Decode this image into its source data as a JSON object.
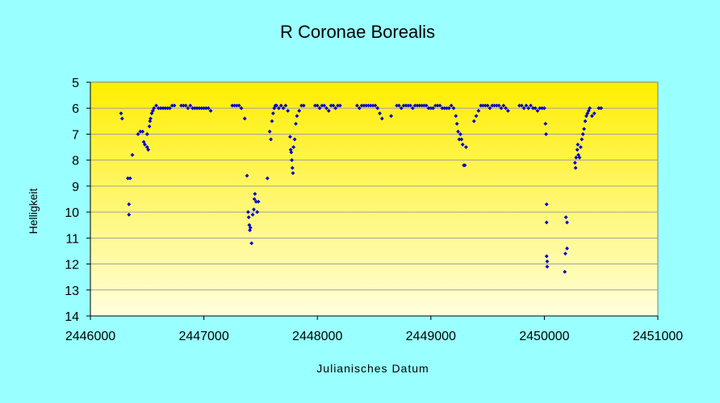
{
  "chart_data": {
    "type": "scatter",
    "title": "R Coronae Borealis",
    "xlabel": "Julianisches Datum",
    "ylabel": "Helligkeit",
    "xlim": [
      2446000,
      2451000
    ],
    "ylim": [
      5,
      14
    ],
    "y_inverted": true,
    "x_ticks": [
      "2446000",
      "2447000",
      "2448000",
      "2449000",
      "2450000",
      "2451000"
    ],
    "y_ticks": [
      "5",
      "6",
      "7",
      "8",
      "9",
      "10",
      "11",
      "12",
      "13",
      "14"
    ],
    "grid": true,
    "legend": "none",
    "colors": {
      "background": "#99ffff",
      "plot_top": "#ffee00",
      "plot_bottom": "#ffffdd",
      "marker": "#0000cc",
      "grid": "#a0a0a0"
    },
    "series": [
      {
        "marker": "diamond",
        "points": [
          [
            2446270,
            6.2
          ],
          [
            2446280,
            6.4
          ],
          [
            2446330,
            8.7
          ],
          [
            2446340,
            9.7
          ],
          [
            2446340,
            10.1
          ],
          [
            2446350,
            8.7
          ],
          [
            2446370,
            7.8
          ],
          [
            2446420,
            7.0
          ],
          [
            2446440,
            6.9
          ],
          [
            2446460,
            6.9
          ],
          [
            2446470,
            7.3
          ],
          [
            2446480,
            7.4
          ],
          [
            2446500,
            7.5
          ],
          [
            2446510,
            7.6
          ],
          [
            2446500,
            7.0
          ],
          [
            2446520,
            6.7
          ],
          [
            2446525,
            6.5
          ],
          [
            2446530,
            6.4
          ],
          [
            2446540,
            6.2
          ],
          [
            2446550,
            6.1
          ],
          [
            2446560,
            6.0
          ],
          [
            2446580,
            5.9
          ],
          [
            2446600,
            6.0
          ],
          [
            2446620,
            6.0
          ],
          [
            2446640,
            6.0
          ],
          [
            2446660,
            6.0
          ],
          [
            2446680,
            6.0
          ],
          [
            2446700,
            6.0
          ],
          [
            2446720,
            5.9
          ],
          [
            2446740,
            5.9
          ],
          [
            2446800,
            5.9
          ],
          [
            2446820,
            5.9
          ],
          [
            2446840,
            5.9
          ],
          [
            2446860,
            6.0
          ],
          [
            2446880,
            5.9
          ],
          [
            2446900,
            6.0
          ],
          [
            2446920,
            6.0
          ],
          [
            2446940,
            6.0
          ],
          [
            2446960,
            6.0
          ],
          [
            2446980,
            6.0
          ],
          [
            2447000,
            6.0
          ],
          [
            2447020,
            6.0
          ],
          [
            2447040,
            6.0
          ],
          [
            2447060,
            6.1
          ],
          [
            2447250,
            5.9
          ],
          [
            2447270,
            5.9
          ],
          [
            2447290,
            5.9
          ],
          [
            2447310,
            5.9
          ],
          [
            2447330,
            6.0
          ],
          [
            2447360,
            6.4
          ],
          [
            2447380,
            8.6
          ],
          [
            2447390,
            10.0
          ],
          [
            2447395,
            10.2
          ],
          [
            2447400,
            10.5
          ],
          [
            2447405,
            10.7
          ],
          [
            2447410,
            10.6
          ],
          [
            2447420,
            11.2
          ],
          [
            2447430,
            10.1
          ],
          [
            2447440,
            9.9
          ],
          [
            2447445,
            9.5
          ],
          [
            2447450,
            9.3
          ],
          [
            2447460,
            9.6
          ],
          [
            2447470,
            10.0
          ],
          [
            2447480,
            9.6
          ],
          [
            2447560,
            8.7
          ],
          [
            2447580,
            6.9
          ],
          [
            2447590,
            7.2
          ],
          [
            2447600,
            6.5
          ],
          [
            2447610,
            6.2
          ],
          [
            2447620,
            6.0
          ],
          [
            2447630,
            5.9
          ],
          [
            2447640,
            5.9
          ],
          [
            2447660,
            6.0
          ],
          [
            2447680,
            5.9
          ],
          [
            2447700,
            6.0
          ],
          [
            2447720,
            5.9
          ],
          [
            2447740,
            6.1
          ],
          [
            2447760,
            7.1
          ],
          [
            2447765,
            7.6
          ],
          [
            2447770,
            7.7
          ],
          [
            2447775,
            8.0
          ],
          [
            2447780,
            8.3
          ],
          [
            2447785,
            8.5
          ],
          [
            2447790,
            7.5
          ],
          [
            2447800,
            7.2
          ],
          [
            2447810,
            6.6
          ],
          [
            2447820,
            6.3
          ],
          [
            2447840,
            6.1
          ],
          [
            2447860,
            5.9
          ],
          [
            2447880,
            5.9
          ],
          [
            2447980,
            5.9
          ],
          [
            2448000,
            5.9
          ],
          [
            2448020,
            6.0
          ],
          [
            2448040,
            5.9
          ],
          [
            2448060,
            5.9
          ],
          [
            2448080,
            6.0
          ],
          [
            2448100,
            6.1
          ],
          [
            2448120,
            5.9
          ],
          [
            2448140,
            5.9
          ],
          [
            2448160,
            6.0
          ],
          [
            2448180,
            5.9
          ],
          [
            2448200,
            5.9
          ],
          [
            2448350,
            5.9
          ],
          [
            2448370,
            6.0
          ],
          [
            2448390,
            5.9
          ],
          [
            2448410,
            5.9
          ],
          [
            2448430,
            5.9
          ],
          [
            2448450,
            5.9
          ],
          [
            2448470,
            5.9
          ],
          [
            2448490,
            5.9
          ],
          [
            2448510,
            5.9
          ],
          [
            2448530,
            6.0
          ],
          [
            2448550,
            6.2
          ],
          [
            2448570,
            6.4
          ],
          [
            2448650,
            6.3
          ],
          [
            2448700,
            5.9
          ],
          [
            2448720,
            5.9
          ],
          [
            2448740,
            6.0
          ],
          [
            2448760,
            5.9
          ],
          [
            2448780,
            5.9
          ],
          [
            2448800,
            5.9
          ],
          [
            2448820,
            5.9
          ],
          [
            2448840,
            6.0
          ],
          [
            2448860,
            5.9
          ],
          [
            2448880,
            5.9
          ],
          [
            2448900,
            5.9
          ],
          [
            2448920,
            5.9
          ],
          [
            2448940,
            5.9
          ],
          [
            2448960,
            5.9
          ],
          [
            2448980,
            6.0
          ],
          [
            2449000,
            6.0
          ],
          [
            2449020,
            6.0
          ],
          [
            2449040,
            5.9
          ],
          [
            2449060,
            5.9
          ],
          [
            2449080,
            5.9
          ],
          [
            2449100,
            6.0
          ],
          [
            2449120,
            6.0
          ],
          [
            2449140,
            6.0
          ],
          [
            2449160,
            6.0
          ],
          [
            2449180,
            5.9
          ],
          [
            2449200,
            6.0
          ],
          [
            2449220,
            6.3
          ],
          [
            2449230,
            6.6
          ],
          [
            2449240,
            6.9
          ],
          [
            2449250,
            7.2
          ],
          [
            2449260,
            7.0
          ],
          [
            2449270,
            7.2
          ],
          [
            2449280,
            7.4
          ],
          [
            2449290,
            8.2
          ],
          [
            2449300,
            8.2
          ],
          [
            2449310,
            7.5
          ],
          [
            2449380,
            6.5
          ],
          [
            2449400,
            6.3
          ],
          [
            2449420,
            6.1
          ],
          [
            2449440,
            5.9
          ],
          [
            2449460,
            5.9
          ],
          [
            2449480,
            5.9
          ],
          [
            2449500,
            5.9
          ],
          [
            2449520,
            6.0
          ],
          [
            2449540,
            5.9
          ],
          [
            2449560,
            5.9
          ],
          [
            2449580,
            5.9
          ],
          [
            2449600,
            5.9
          ],
          [
            2449620,
            6.0
          ],
          [
            2449640,
            5.9
          ],
          [
            2449660,
            6.0
          ],
          [
            2449680,
            6.1
          ],
          [
            2449780,
            5.9
          ],
          [
            2449800,
            5.9
          ],
          [
            2449820,
            6.0
          ],
          [
            2449840,
            5.9
          ],
          [
            2449860,
            6.0
          ],
          [
            2449880,
            5.9
          ],
          [
            2449900,
            6.0
          ],
          [
            2449920,
            6.0
          ],
          [
            2449940,
            6.1
          ],
          [
            2449960,
            6.0
          ],
          [
            2449980,
            6.0
          ],
          [
            2450000,
            6.0
          ],
          [
            2450010,
            6.6
          ],
          [
            2450015,
            7.0
          ],
          [
            2450020,
            9.7
          ],
          [
            2450020,
            10.4
          ],
          [
            2450020,
            11.7
          ],
          [
            2450025,
            11.9
          ],
          [
            2450025,
            12.1
          ],
          [
            2450180,
            12.3
          ],
          [
            2450185,
            11.6
          ],
          [
            2450190,
            10.2
          ],
          [
            2450200,
            10.4
          ],
          [
            2450200,
            11.4
          ],
          [
            2450270,
            8.1
          ],
          [
            2450275,
            8.3
          ],
          [
            2450280,
            7.9
          ],
          [
            2450290,
            7.6
          ],
          [
            2450295,
            7.4
          ],
          [
            2450300,
            7.8
          ],
          [
            2450310,
            7.9
          ],
          [
            2450320,
            7.5
          ],
          [
            2450330,
            7.2
          ],
          [
            2450340,
            7.0
          ],
          [
            2450350,
            6.8
          ],
          [
            2450360,
            6.5
          ],
          [
            2450370,
            6.3
          ],
          [
            2450380,
            6.2
          ],
          [
            2450390,
            6.1
          ],
          [
            2450400,
            6.0
          ],
          [
            2450420,
            6.3
          ],
          [
            2450440,
            6.2
          ],
          [
            2450480,
            6.0
          ],
          [
            2450500,
            6.0
          ]
        ]
      }
    ]
  }
}
